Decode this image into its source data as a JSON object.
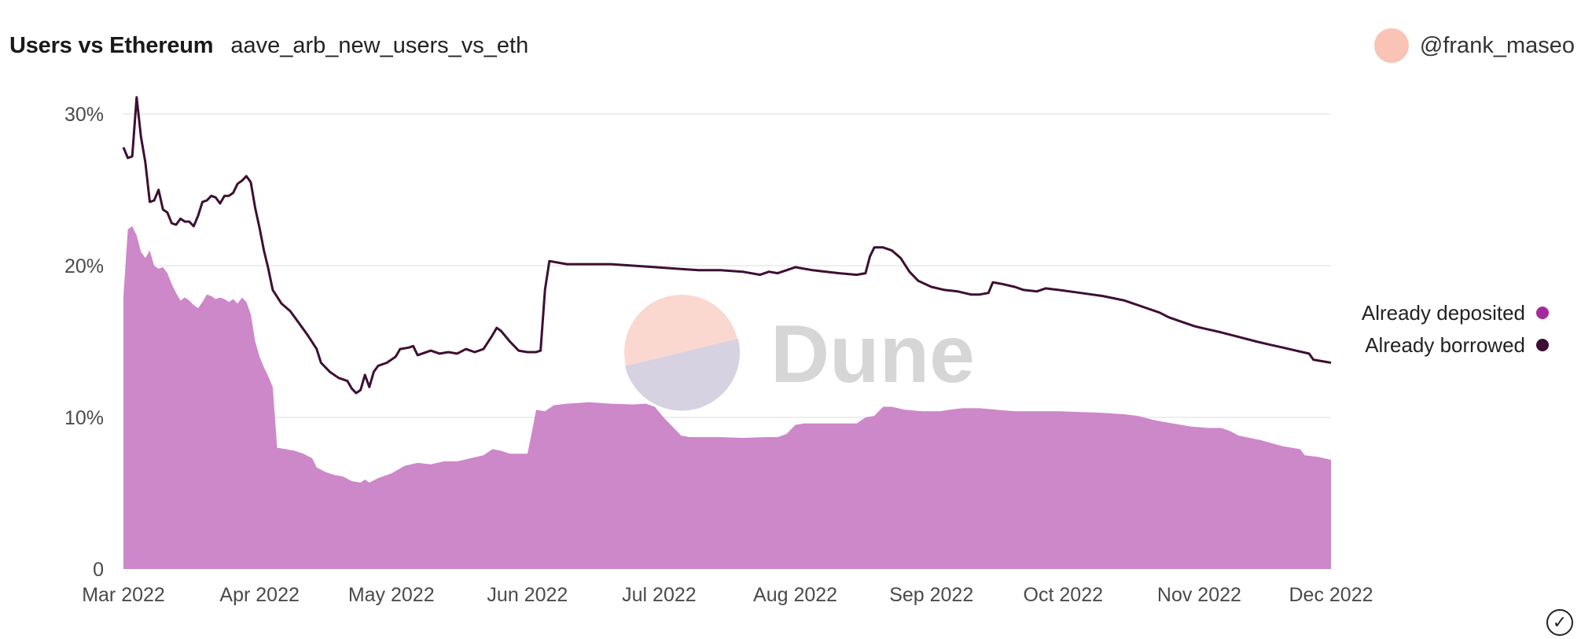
{
  "header": {
    "title": "Users vs Ethereum",
    "query_name": "aave_arb_new_users_vs_eth",
    "author": "@frank_maseo"
  },
  "watermark": "Dune",
  "colors": {
    "deposited": "#cd88c9",
    "borrowed": "#3d0f33",
    "grid": "#e9e9e9",
    "avatar": "#f9c3b6",
    "legend_deposited_dot": "#a52aa0"
  },
  "chart_data": {
    "type": "area",
    "x_ticks": [
      "Mar 2022",
      "Apr 2022",
      "May 2022",
      "Jun 2022",
      "Jul 2022",
      "Aug 2022",
      "Sep 2022",
      "Oct 2022",
      "Nov 2022",
      "Dec 2022"
    ],
    "y_ticks": [
      "0",
      "10%",
      "20%",
      "30%"
    ],
    "ylim": [
      0,
      30
    ],
    "xlim": [
      "2022-03-01",
      "2022-12-01"
    ],
    "legend": {
      "position": "right"
    },
    "series": [
      {
        "name": "Already deposited",
        "type": "area",
        "points": [
          [
            "2022-03-01",
            18.0
          ],
          [
            "2022-03-02",
            22.4
          ],
          [
            "2022-03-03",
            22.6
          ],
          [
            "2022-03-04",
            22.0
          ],
          [
            "2022-03-05",
            20.9
          ],
          [
            "2022-03-06",
            20.5
          ],
          [
            "2022-03-07",
            21.0
          ],
          [
            "2022-03-08",
            20.0
          ],
          [
            "2022-03-09",
            19.8
          ],
          [
            "2022-03-10",
            19.9
          ],
          [
            "2022-03-11",
            19.5
          ],
          [
            "2022-03-12",
            18.8
          ],
          [
            "2022-03-13",
            18.2
          ],
          [
            "2022-03-14",
            17.7
          ],
          [
            "2022-03-15",
            17.9
          ],
          [
            "2022-03-16",
            17.7
          ],
          [
            "2022-03-17",
            17.4
          ],
          [
            "2022-03-18",
            17.2
          ],
          [
            "2022-03-19",
            17.6
          ],
          [
            "2022-03-20",
            18.1
          ],
          [
            "2022-03-21",
            18.0
          ],
          [
            "2022-03-22",
            17.8
          ],
          [
            "2022-03-23",
            17.9
          ],
          [
            "2022-03-24",
            17.8
          ],
          [
            "2022-03-25",
            17.6
          ],
          [
            "2022-03-26",
            17.8
          ],
          [
            "2022-03-27",
            17.5
          ],
          [
            "2022-03-28",
            17.9
          ],
          [
            "2022-03-29",
            17.6
          ],
          [
            "2022-03-30",
            16.8
          ],
          [
            "2022-03-31",
            15.0
          ],
          [
            "2022-04-01",
            14.0
          ],
          [
            "2022-04-02",
            13.3
          ],
          [
            "2022-04-03",
            12.7
          ],
          [
            "2022-04-04",
            12.0
          ],
          [
            "2022-04-05",
            8.0
          ],
          [
            "2022-04-07",
            7.9
          ],
          [
            "2022-04-09",
            7.8
          ],
          [
            "2022-04-11",
            7.6
          ],
          [
            "2022-04-13",
            7.3
          ],
          [
            "2022-04-14",
            6.7
          ],
          [
            "2022-04-16",
            6.4
          ],
          [
            "2022-04-18",
            6.2
          ],
          [
            "2022-04-20",
            6.1
          ],
          [
            "2022-04-22",
            5.8
          ],
          [
            "2022-04-24",
            5.7
          ],
          [
            "2022-04-25",
            5.9
          ],
          [
            "2022-04-26",
            5.7
          ],
          [
            "2022-04-28",
            6.0
          ],
          [
            "2022-05-01",
            6.3
          ],
          [
            "2022-05-04",
            6.8
          ],
          [
            "2022-05-07",
            7.0
          ],
          [
            "2022-05-10",
            6.9
          ],
          [
            "2022-05-13",
            7.1
          ],
          [
            "2022-05-16",
            7.1
          ],
          [
            "2022-05-19",
            7.3
          ],
          [
            "2022-05-22",
            7.5
          ],
          [
            "2022-05-24",
            7.9
          ],
          [
            "2022-05-26",
            7.8
          ],
          [
            "2022-05-28",
            7.6
          ],
          [
            "2022-05-31",
            7.6
          ],
          [
            "2022-06-01",
            7.6
          ],
          [
            "2022-06-02",
            9.0
          ],
          [
            "2022-06-03",
            10.5
          ],
          [
            "2022-06-05",
            10.4
          ],
          [
            "2022-06-07",
            10.8
          ],
          [
            "2022-06-10",
            10.9
          ],
          [
            "2022-06-15",
            11.0
          ],
          [
            "2022-06-20",
            10.9
          ],
          [
            "2022-06-25",
            10.85
          ],
          [
            "2022-06-28",
            10.9
          ],
          [
            "2022-06-30",
            10.7
          ],
          [
            "2022-07-02",
            10.0
          ],
          [
            "2022-07-04",
            9.4
          ],
          [
            "2022-07-06",
            8.8
          ],
          [
            "2022-07-08",
            8.7
          ],
          [
            "2022-07-15",
            8.7
          ],
          [
            "2022-07-20",
            8.65
          ],
          [
            "2022-07-25",
            8.7
          ],
          [
            "2022-07-28",
            8.7
          ],
          [
            "2022-07-30",
            8.9
          ],
          [
            "2022-08-01",
            9.5
          ],
          [
            "2022-08-03",
            9.6
          ],
          [
            "2022-08-08",
            9.6
          ],
          [
            "2022-08-13",
            9.6
          ],
          [
            "2022-08-15",
            9.6
          ],
          [
            "2022-08-17",
            10.0
          ],
          [
            "2022-08-19",
            10.1
          ],
          [
            "2022-08-21",
            10.7
          ],
          [
            "2022-08-23",
            10.7
          ],
          [
            "2022-08-26",
            10.5
          ],
          [
            "2022-08-30",
            10.4
          ],
          [
            "2022-09-03",
            10.4
          ],
          [
            "2022-09-05",
            10.5
          ],
          [
            "2022-09-08",
            10.6
          ],
          [
            "2022-09-12",
            10.6
          ],
          [
            "2022-09-16",
            10.5
          ],
          [
            "2022-09-20",
            10.4
          ],
          [
            "2022-09-25",
            10.4
          ],
          [
            "2022-09-30",
            10.4
          ],
          [
            "2022-10-05",
            10.35
          ],
          [
            "2022-10-10",
            10.3
          ],
          [
            "2022-10-15",
            10.2
          ],
          [
            "2022-10-18",
            10.1
          ],
          [
            "2022-10-22",
            9.8
          ],
          [
            "2022-10-26",
            9.6
          ],
          [
            "2022-10-30",
            9.4
          ],
          [
            "2022-11-03",
            9.3
          ],
          [
            "2022-11-06",
            9.3
          ],
          [
            "2022-11-08",
            9.1
          ],
          [
            "2022-11-10",
            8.8
          ],
          [
            "2022-11-15",
            8.5
          ],
          [
            "2022-11-20",
            8.1
          ],
          [
            "2022-11-24",
            7.9
          ],
          [
            "2022-11-25",
            7.5
          ],
          [
            "2022-11-28",
            7.4
          ],
          [
            "2022-12-01",
            7.2
          ]
        ]
      },
      {
        "name": "Already borrowed",
        "type": "line",
        "points": [
          [
            "2022-03-01",
            27.8
          ],
          [
            "2022-03-02",
            27.1
          ],
          [
            "2022-03-03",
            27.2
          ],
          [
            "2022-03-04",
            31.1
          ],
          [
            "2022-03-05",
            28.5
          ],
          [
            "2022-03-06",
            26.8
          ],
          [
            "2022-03-07",
            24.2
          ],
          [
            "2022-03-08",
            24.3
          ],
          [
            "2022-03-09",
            25.0
          ],
          [
            "2022-03-10",
            23.7
          ],
          [
            "2022-03-11",
            23.5
          ],
          [
            "2022-03-12",
            22.8
          ],
          [
            "2022-03-13",
            22.7
          ],
          [
            "2022-03-14",
            23.1
          ],
          [
            "2022-03-15",
            22.9
          ],
          [
            "2022-03-16",
            22.9
          ],
          [
            "2022-03-17",
            22.6
          ],
          [
            "2022-03-18",
            23.3
          ],
          [
            "2022-03-19",
            24.2
          ],
          [
            "2022-03-20",
            24.3
          ],
          [
            "2022-03-21",
            24.6
          ],
          [
            "2022-03-22",
            24.5
          ],
          [
            "2022-03-23",
            24.1
          ],
          [
            "2022-03-24",
            24.6
          ],
          [
            "2022-03-25",
            24.6
          ],
          [
            "2022-03-26",
            24.8
          ],
          [
            "2022-03-27",
            25.4
          ],
          [
            "2022-03-28",
            25.6
          ],
          [
            "2022-03-29",
            25.9
          ],
          [
            "2022-03-30",
            25.5
          ],
          [
            "2022-03-31",
            23.8
          ],
          [
            "2022-04-01",
            22.5
          ],
          [
            "2022-04-02",
            21.0
          ],
          [
            "2022-04-03",
            19.8
          ],
          [
            "2022-04-04",
            18.4
          ],
          [
            "2022-04-06",
            17.5
          ],
          [
            "2022-04-08",
            17.0
          ],
          [
            "2022-04-10",
            16.2
          ],
          [
            "2022-04-12",
            15.4
          ],
          [
            "2022-04-14",
            14.5
          ],
          [
            "2022-04-15",
            13.6
          ],
          [
            "2022-04-17",
            13.0
          ],
          [
            "2022-04-19",
            12.6
          ],
          [
            "2022-04-21",
            12.4
          ],
          [
            "2022-04-22",
            11.9
          ],
          [
            "2022-04-23",
            11.6
          ],
          [
            "2022-04-24",
            11.8
          ],
          [
            "2022-04-25",
            12.8
          ],
          [
            "2022-04-26",
            12.0
          ],
          [
            "2022-04-27",
            13.0
          ],
          [
            "2022-04-28",
            13.4
          ],
          [
            "2022-04-30",
            13.6
          ],
          [
            "2022-05-02",
            14.0
          ],
          [
            "2022-05-03",
            14.5
          ],
          [
            "2022-05-05",
            14.6
          ],
          [
            "2022-05-06",
            14.7
          ],
          [
            "2022-05-07",
            14.1
          ],
          [
            "2022-05-08",
            14.2
          ],
          [
            "2022-05-10",
            14.4
          ],
          [
            "2022-05-12",
            14.2
          ],
          [
            "2022-05-14",
            14.3
          ],
          [
            "2022-05-16",
            14.2
          ],
          [
            "2022-05-18",
            14.5
          ],
          [
            "2022-05-20",
            14.3
          ],
          [
            "2022-05-22",
            14.5
          ],
          [
            "2022-05-24",
            15.4
          ],
          [
            "2022-05-25",
            15.9
          ],
          [
            "2022-05-26",
            15.7
          ],
          [
            "2022-05-28",
            15.0
          ],
          [
            "2022-05-30",
            14.4
          ],
          [
            "2022-06-01",
            14.3
          ],
          [
            "2022-06-03",
            14.3
          ],
          [
            "2022-06-04",
            14.4
          ],
          [
            "2022-06-05",
            18.4
          ],
          [
            "2022-06-06",
            20.3
          ],
          [
            "2022-06-10",
            20.1
          ],
          [
            "2022-06-15",
            20.1
          ],
          [
            "2022-06-20",
            20.1
          ],
          [
            "2022-06-25",
            20.0
          ],
          [
            "2022-06-30",
            19.9
          ],
          [
            "2022-07-05",
            19.8
          ],
          [
            "2022-07-10",
            19.7
          ],
          [
            "2022-07-15",
            19.7
          ],
          [
            "2022-07-20",
            19.6
          ],
          [
            "2022-07-24",
            19.4
          ],
          [
            "2022-07-26",
            19.6
          ],
          [
            "2022-07-28",
            19.5
          ],
          [
            "2022-07-30",
            19.7
          ],
          [
            "2022-08-01",
            19.9
          ],
          [
            "2022-08-03",
            19.8
          ],
          [
            "2022-08-05",
            19.7
          ],
          [
            "2022-08-08",
            19.6
          ],
          [
            "2022-08-11",
            19.5
          ],
          [
            "2022-08-15",
            19.4
          ],
          [
            "2022-08-17",
            19.5
          ],
          [
            "2022-08-18",
            20.6
          ],
          [
            "2022-08-19",
            21.2
          ],
          [
            "2022-08-21",
            21.2
          ],
          [
            "2022-08-23",
            21.0
          ],
          [
            "2022-08-25",
            20.5
          ],
          [
            "2022-08-27",
            19.6
          ],
          [
            "2022-08-29",
            19.0
          ],
          [
            "2022-09-01",
            18.6
          ],
          [
            "2022-09-04",
            18.4
          ],
          [
            "2022-09-07",
            18.3
          ],
          [
            "2022-09-10",
            18.1
          ],
          [
            "2022-09-12",
            18.1
          ],
          [
            "2022-09-14",
            18.2
          ],
          [
            "2022-09-15",
            18.9
          ],
          [
            "2022-09-17",
            18.8
          ],
          [
            "2022-09-20",
            18.6
          ],
          [
            "2022-09-22",
            18.4
          ],
          [
            "2022-09-25",
            18.3
          ],
          [
            "2022-09-27",
            18.5
          ],
          [
            "2022-09-30",
            18.4
          ],
          [
            "2022-10-05",
            18.2
          ],
          [
            "2022-10-10",
            18.0
          ],
          [
            "2022-10-15",
            17.7
          ],
          [
            "2022-10-20",
            17.2
          ],
          [
            "2022-10-23",
            16.9
          ],
          [
            "2022-10-25",
            16.6
          ],
          [
            "2022-10-28",
            16.3
          ],
          [
            "2022-10-31",
            16.0
          ],
          [
            "2022-11-03",
            15.8
          ],
          [
            "2022-11-06",
            15.6
          ],
          [
            "2022-11-10",
            15.3
          ],
          [
            "2022-11-14",
            15.0
          ],
          [
            "2022-11-17",
            14.8
          ],
          [
            "2022-11-20",
            14.6
          ],
          [
            "2022-11-23",
            14.4
          ],
          [
            "2022-11-26",
            14.2
          ],
          [
            "2022-11-27",
            13.8
          ],
          [
            "2022-11-28",
            13.75
          ],
          [
            "2022-12-01",
            13.6
          ]
        ]
      }
    ]
  }
}
